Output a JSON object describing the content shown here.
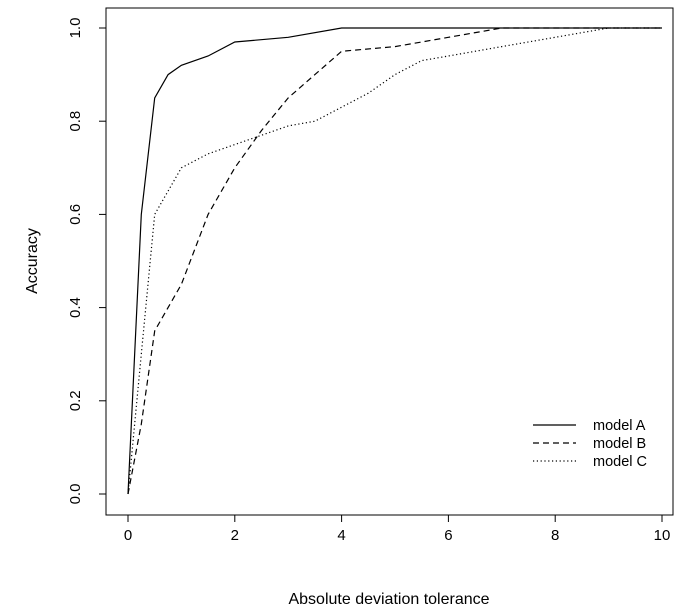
{
  "chart_data": {
    "type": "line",
    "xlabel": "Absolute deviation tolerance",
    "ylabel": "Accuracy",
    "xlim": [
      0,
      10
    ],
    "ylim": [
      0,
      1
    ],
    "x_ticks": [
      "0",
      "2",
      "4",
      "6",
      "8",
      "10"
    ],
    "y_ticks": [
      "0.0",
      "0.2",
      "0.4",
      "0.6",
      "0.8",
      "1.0"
    ],
    "grid": false,
    "legend_position": "bottom-right",
    "series": [
      {
        "name": "model A",
        "line_style": "solid",
        "x": [
          0,
          0.25,
          0.5,
          0.75,
          1,
          1.5,
          2,
          3,
          4,
          5,
          6,
          7,
          8,
          9,
          10
        ],
        "y": [
          0,
          0.6,
          0.85,
          0.9,
          0.92,
          0.94,
          0.97,
          0.98,
          1.0,
          1.0,
          1.0,
          1.0,
          1.0,
          1.0,
          1.0
        ]
      },
      {
        "name": "model B",
        "line_style": "dashed",
        "x": [
          0,
          0.25,
          0.5,
          1,
          1.5,
          2,
          2.5,
          3,
          3.5,
          4,
          5,
          5.5,
          6,
          7,
          8,
          9,
          10
        ],
        "y": [
          0,
          0.15,
          0.35,
          0.45,
          0.6,
          0.7,
          0.78,
          0.85,
          0.9,
          0.95,
          0.96,
          0.97,
          0.98,
          1.0,
          1.0,
          1.0,
          1.0
        ]
      },
      {
        "name": "model C",
        "line_style": "dotted",
        "x": [
          0,
          0.25,
          0.5,
          1,
          1.5,
          2,
          2.5,
          3,
          3.5,
          4,
          4.5,
          5,
          5.5,
          6,
          7,
          8,
          9,
          10
        ],
        "y": [
          0,
          0.3,
          0.6,
          0.7,
          0.73,
          0.75,
          0.77,
          0.79,
          0.8,
          0.83,
          0.86,
          0.9,
          0.93,
          0.94,
          0.96,
          0.98,
          1.0,
          1.0
        ]
      }
    ]
  }
}
